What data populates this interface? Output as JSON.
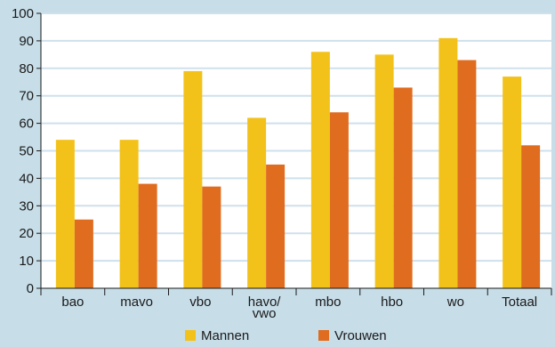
{
  "chart_data": {
    "type": "bar",
    "categories": [
      "bao",
      "mavo",
      "vbo",
      "havo/\nvwo",
      "mbo",
      "hbo",
      "wo",
      "Totaal"
    ],
    "series": [
      {
        "name": "Mannen",
        "color": "#f2c21b",
        "values": [
          54,
          54,
          79,
          62,
          86,
          85,
          91,
          77
        ]
      },
      {
        "name": "Vrouwen",
        "color": "#e06c1f",
        "values": [
          25,
          38,
          37,
          45,
          64,
          73,
          83,
          52
        ]
      }
    ],
    "ylim": [
      0,
      100
    ],
    "yticks": [
      0,
      10,
      20,
      30,
      40,
      50,
      60,
      70,
      80,
      90,
      100
    ],
    "grid": true,
    "legend_position": "bottom",
    "background_color": "#c7dde8",
    "plot_background_color": "#ffffff",
    "grid_color": "#cfe1eb"
  }
}
